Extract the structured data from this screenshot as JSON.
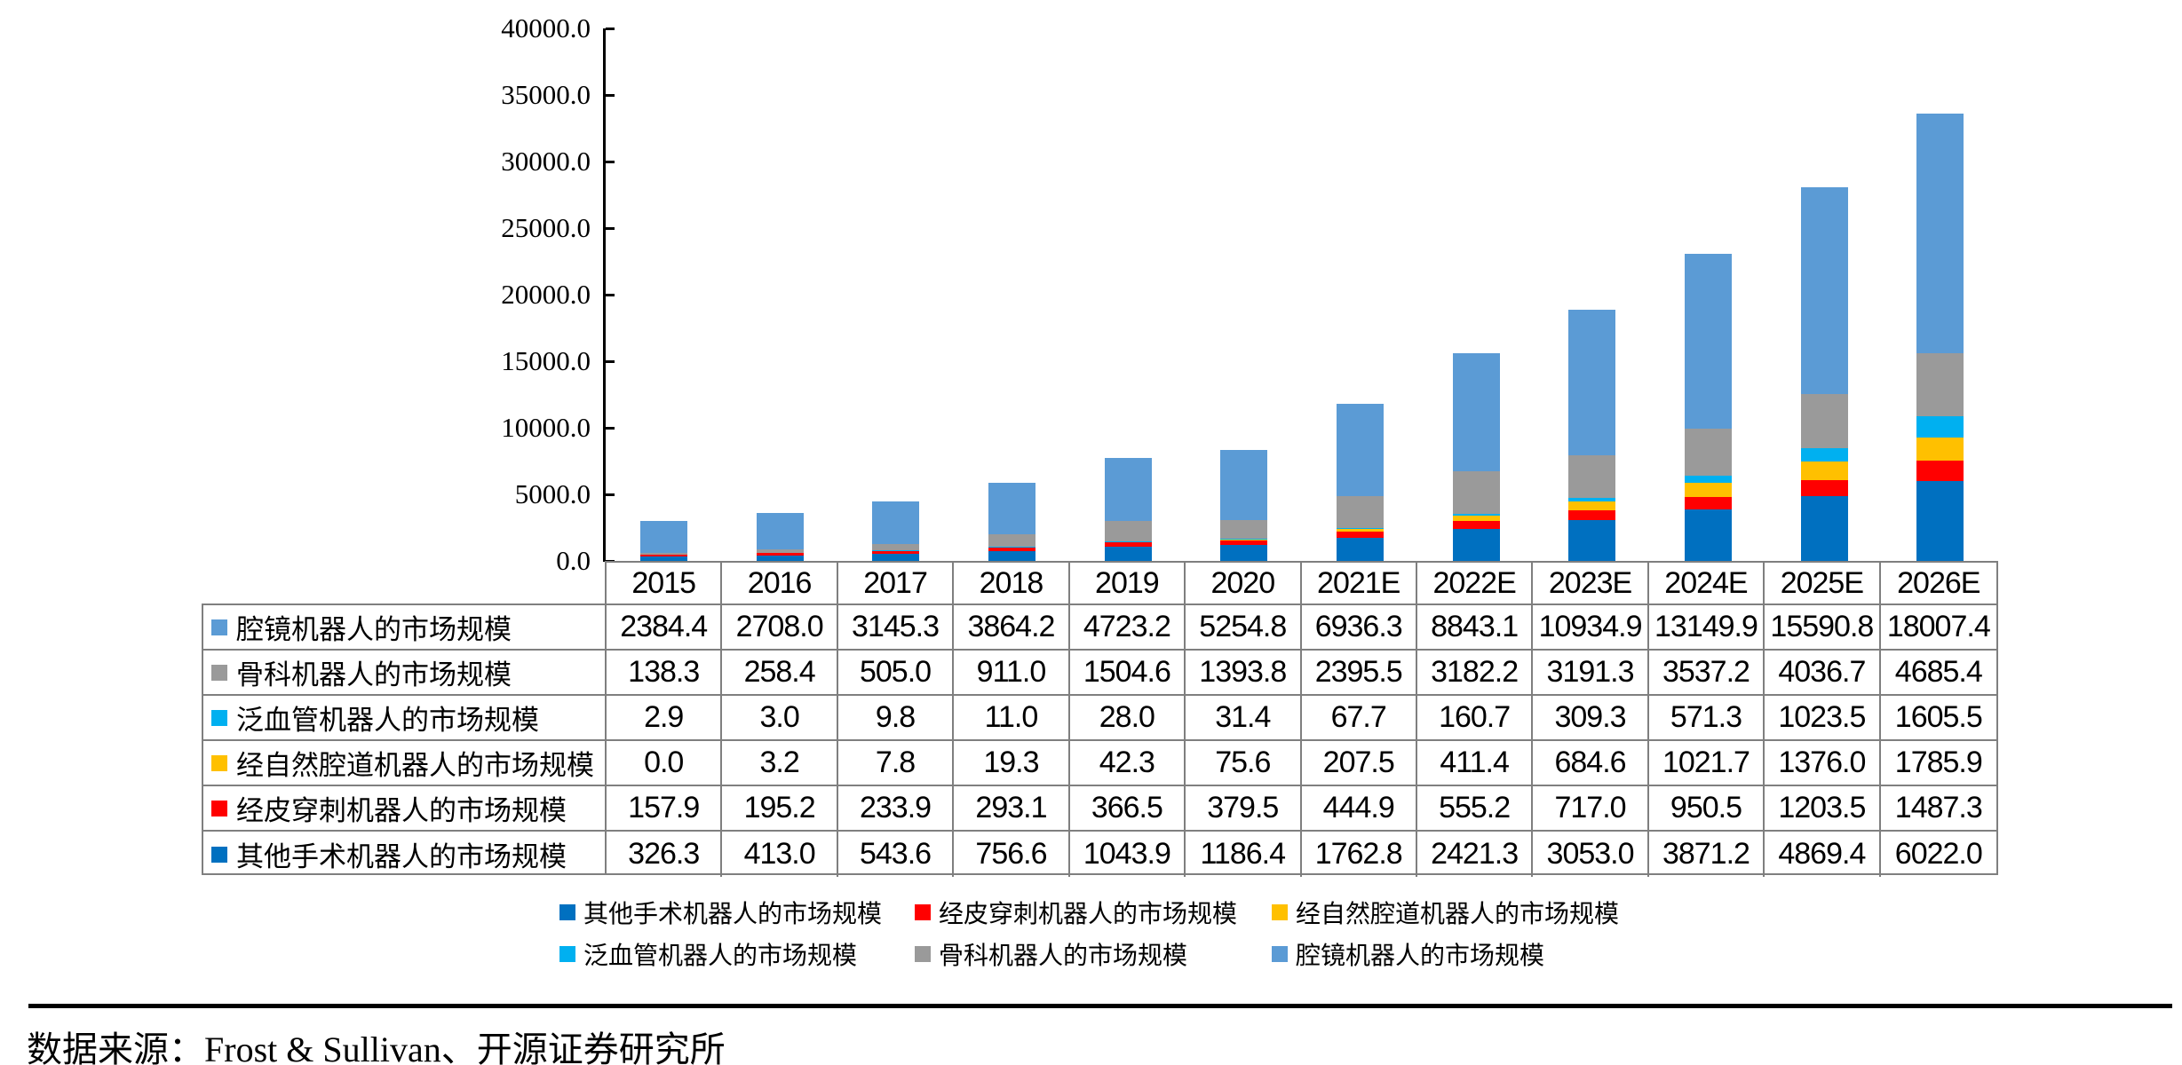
{
  "chart_data": {
    "type": "bar",
    "stacked": true,
    "title": "",
    "xlabel": "",
    "ylabel": "",
    "categories": [
      "2015",
      "2016",
      "2017",
      "2018",
      "2019",
      "2020",
      "2021E",
      "2022E",
      "2023E",
      "2024E",
      "2025E",
      "2026E"
    ],
    "series": [
      {
        "name": "腔镜机器人的市场规模",
        "color": "#5B9BD5",
        "values": [
          2384.4,
          2708.0,
          3145.3,
          3864.2,
          4723.2,
          5254.8,
          6936.3,
          8843.1,
          10934.9,
          13149.9,
          15590.8,
          18007.4
        ]
      },
      {
        "name": "骨科机器人的市场规模",
        "color": "#9A9A9A",
        "values": [
          138.3,
          258.4,
          505.0,
          911.0,
          1504.6,
          1393.8,
          2395.5,
          3182.2,
          3191.3,
          3537.2,
          4036.7,
          4685.4
        ]
      },
      {
        "name": "泛血管机器人的市场规模",
        "color": "#00B0F0",
        "values": [
          2.9,
          3.0,
          9.8,
          11.0,
          28.0,
          31.4,
          67.7,
          160.7,
          309.3,
          571.3,
          1023.5,
          1605.5
        ]
      },
      {
        "name": "经自然腔道机器人的市场规模",
        "color": "#FFC000",
        "values": [
          0.0,
          3.2,
          7.8,
          19.3,
          42.3,
          75.6,
          207.5,
          411.4,
          684.6,
          1021.7,
          1376.0,
          1785.9
        ]
      },
      {
        "name": "经皮穿刺机器人的市场规模",
        "color": "#FF0000",
        "values": [
          157.9,
          195.2,
          233.9,
          293.1,
          366.5,
          379.5,
          444.9,
          555.2,
          717.0,
          950.5,
          1203.5,
          1487.3
        ]
      },
      {
        "name": "其他手术机器人的市场规模",
        "color": "#0070C0",
        "values": [
          326.3,
          413.0,
          543.6,
          756.6,
          1043.9,
          1186.4,
          1762.8,
          2421.3,
          3053.0,
          3871.2,
          4869.4,
          6022.0
        ]
      }
    ],
    "stack_order_bottom_to_top": [
      "其他手术机器人的市场规模",
      "经皮穿刺机器人的市场规模",
      "经自然腔道机器人的市场规模",
      "泛血管机器人的市场规模",
      "骨科机器人的市场规模",
      "腔镜机器人的市场规模"
    ],
    "ylim": [
      0,
      40000
    ],
    "y_tick_step": 5000,
    "y_tick_labels_top_down": [
      "40000.0",
      "35000.0",
      "30000.0",
      "25000.0",
      "20000.0",
      "15000.0",
      "10000.0",
      "5000.0",
      "0.0"
    ],
    "grid": false,
    "legend_position": "bottom",
    "legend_rows": [
      [
        "其他手术机器人的市场规模",
        "经皮穿刺机器人的市场规模",
        "经自然腔道机器人的市场规模"
      ],
      [
        "泛血管机器人的市场规模",
        "骨科机器人的市场规模",
        "腔镜机器人的市场规模"
      ]
    ]
  },
  "footer": {
    "source": "数据来源：Frost & Sullivan、开源证券研究所"
  }
}
